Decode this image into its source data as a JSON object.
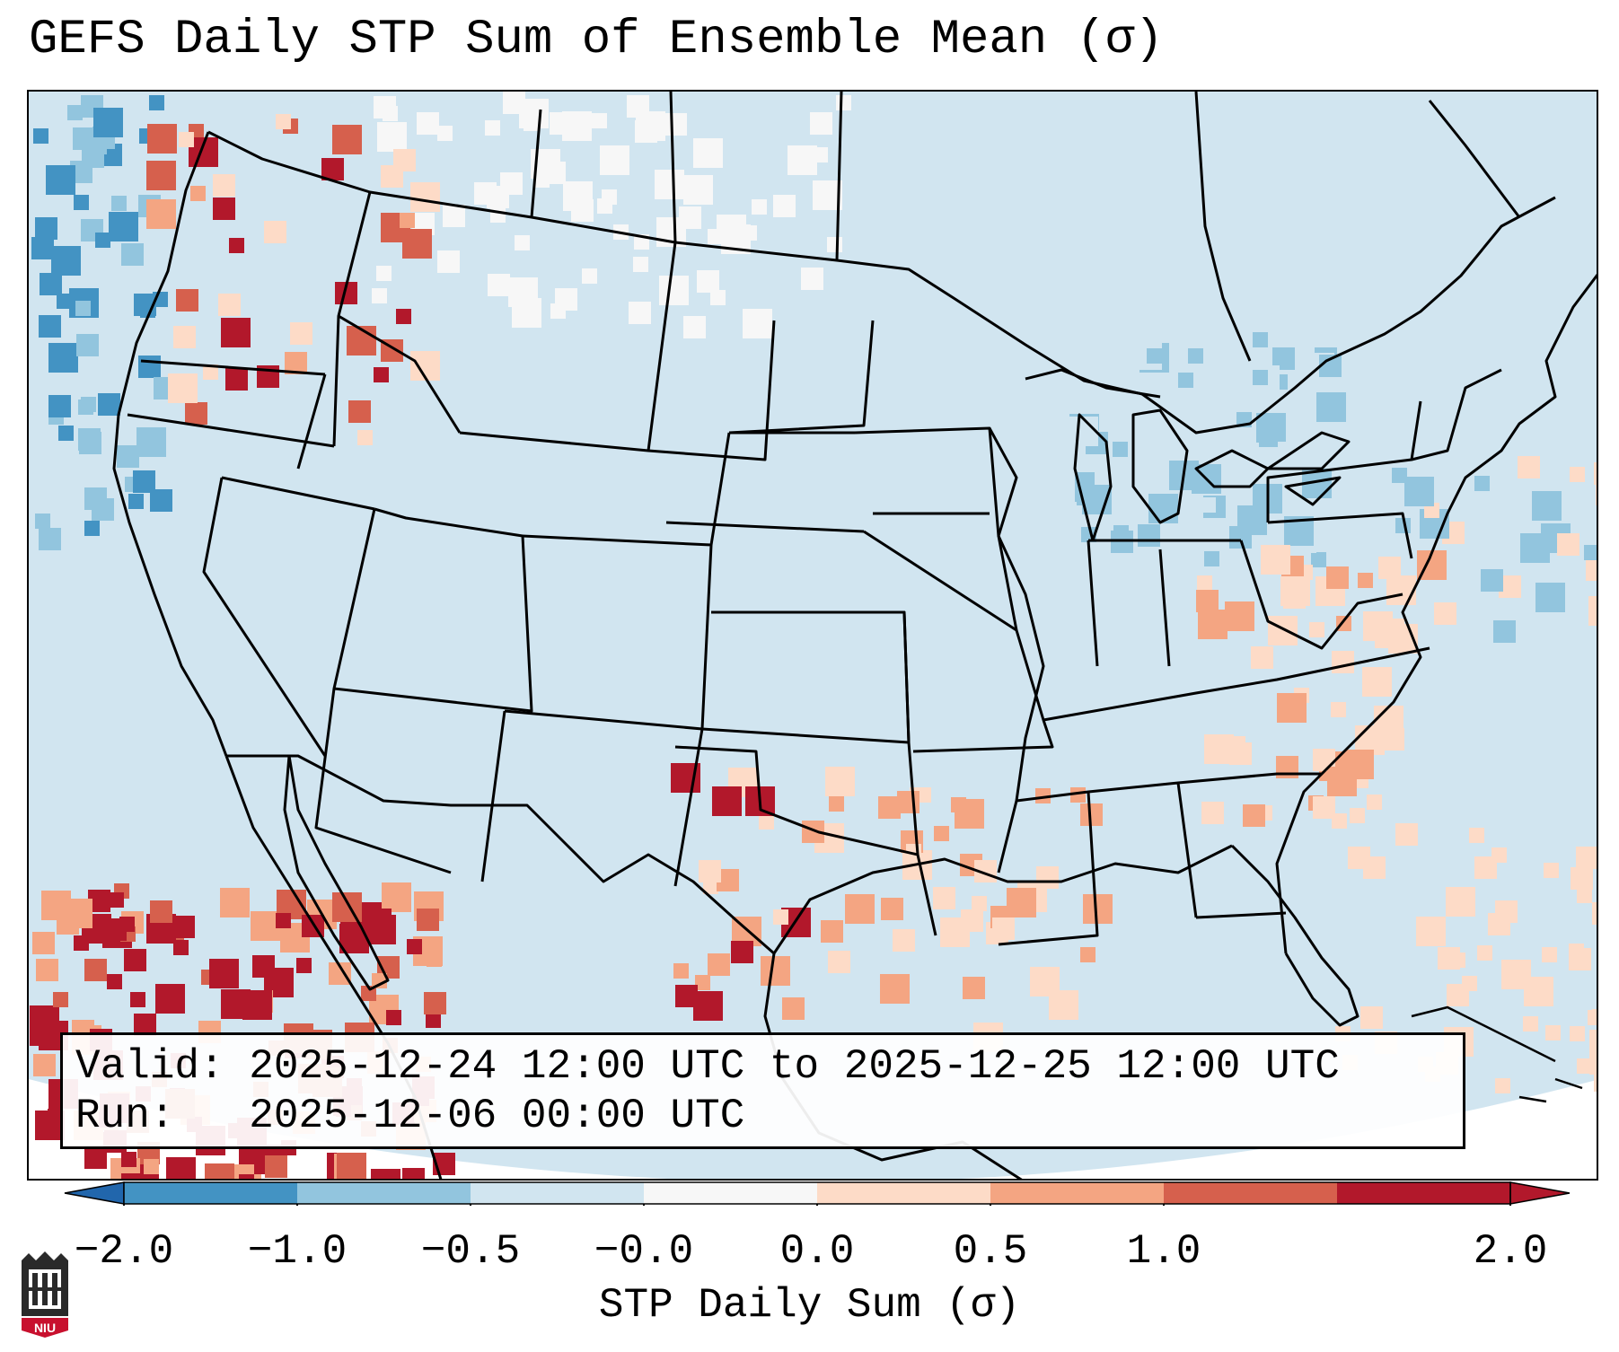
{
  "title": "GEFS Daily STP Sum of Ensemble Mean (σ)",
  "info": {
    "valid_label": "Valid: ",
    "valid_value": "2025-12-24 12:00 UTC to 2025-12-25 12:00 UTC",
    "run_label": "Run:   ",
    "run_value": "2025-12-06 00:00 UTC"
  },
  "colorbar": {
    "label": "STP Daily Sum (σ)",
    "ticks": [
      "−2.0",
      "−1.0",
      "−0.5",
      "−0.0",
      "0.0",
      "0.5",
      "1.0",
      "2.0"
    ],
    "colors": [
      "#4393c3",
      "#92c5de",
      "#d1e5f0",
      "#f7f7f7",
      "#fddbc7",
      "#f4a582",
      "#d6604d",
      "#b2182b"
    ],
    "under_color": "#2166ac",
    "over_color": "#b2182b"
  },
  "map": {
    "background_color": "#d1e5f0",
    "outline_color": "#000000"
  },
  "logo": {
    "text": "NIU",
    "color": "#c8102e"
  }
}
